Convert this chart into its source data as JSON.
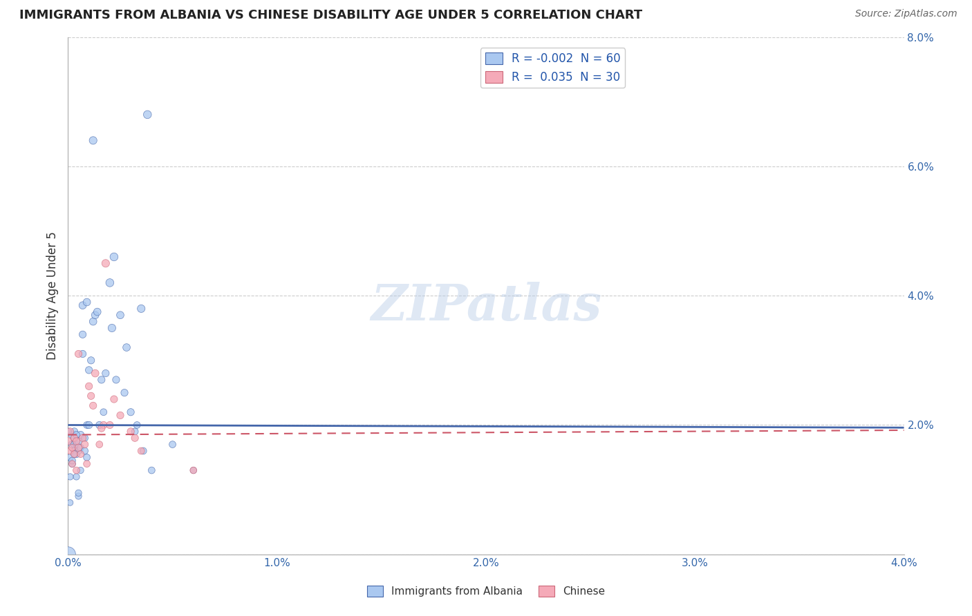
{
  "title": "IMMIGRANTS FROM ALBANIA VS CHINESE DISABILITY AGE UNDER 5 CORRELATION CHART",
  "source": "Source: ZipAtlas.com",
  "ylabel": "Disability Age Under 5",
  "xlim": [
    0.0,
    0.04
  ],
  "ylim": [
    0.0,
    0.08
  ],
  "xtick_labels": [
    "0.0%",
    "1.0%",
    "2.0%",
    "3.0%",
    "4.0%"
  ],
  "xtick_vals": [
    0.0,
    0.01,
    0.02,
    0.03,
    0.04
  ],
  "ytick_labels": [
    "",
    "2.0%",
    "4.0%",
    "6.0%",
    "8.0%"
  ],
  "ytick_vals": [
    0.0,
    0.02,
    0.04,
    0.06,
    0.08
  ],
  "legend1_label": "R = -0.002  N = 60",
  "legend2_label": "R =  0.035  N = 30",
  "series1_color": "#aac8f0",
  "series2_color": "#f5aab8",
  "trendline1_color": "#4466aa",
  "trendline2_color": "#cc5566",
  "watermark": "ZIPatlas",
  "bottom_legend_albania": "Immigrants from Albania",
  "bottom_legend_chinese": "Chinese",
  "albania_x": [
    0.0,
    0.0001,
    0.0001,
    0.0002,
    0.0002,
    0.0002,
    0.0003,
    0.0003,
    0.0003,
    0.0003,
    0.0004,
    0.0004,
    0.0004,
    0.0005,
    0.0005,
    0.0005,
    0.0006,
    0.0006,
    0.0006,
    0.0007,
    0.0007,
    0.0008,
    0.0008,
    0.0009,
    0.0009,
    0.001,
    0.001,
    0.0011,
    0.0012,
    0.0013,
    0.0014,
    0.0015,
    0.0016,
    0.0017,
    0.0018,
    0.002,
    0.0021,
    0.0022,
    0.0023,
    0.0025,
    0.0027,
    0.0028,
    0.003,
    0.0032,
    0.0033,
    0.0035,
    0.0036,
    0.0038,
    0.005,
    0.006,
    0.0,
    0.0001,
    0.0002,
    0.0003,
    0.0004,
    0.0005,
    0.0007,
    0.0009,
    0.0012,
    0.004
  ],
  "albania_y": [
    0.0,
    0.008,
    0.015,
    0.017,
    0.0185,
    0.014,
    0.016,
    0.018,
    0.019,
    0.017,
    0.0155,
    0.017,
    0.012,
    0.0175,
    0.016,
    0.009,
    0.0185,
    0.0165,
    0.013,
    0.034,
    0.031,
    0.018,
    0.016,
    0.02,
    0.015,
    0.0285,
    0.02,
    0.03,
    0.036,
    0.037,
    0.0375,
    0.02,
    0.027,
    0.022,
    0.028,
    0.042,
    0.035,
    0.046,
    0.027,
    0.037,
    0.025,
    0.032,
    0.022,
    0.019,
    0.02,
    0.038,
    0.016,
    0.068,
    0.017,
    0.013,
    0.019,
    0.012,
    0.0145,
    0.0155,
    0.0185,
    0.0095,
    0.0385,
    0.039,
    0.064,
    0.013
  ],
  "albania_sizes": [
    250,
    40,
    50,
    60,
    60,
    50,
    55,
    55,
    55,
    50,
    55,
    50,
    45,
    55,
    50,
    45,
    55,
    50,
    45,
    55,
    55,
    50,
    50,
    50,
    50,
    55,
    55,
    55,
    60,
    60,
    60,
    55,
    55,
    50,
    55,
    70,
    65,
    70,
    55,
    60,
    55,
    60,
    55,
    50,
    50,
    65,
    50,
    70,
    50,
    45,
    50,
    45,
    50,
    50,
    50,
    45,
    60,
    60,
    65,
    50
  ],
  "chinese_x": [
    0.0,
    0.0001,
    0.0001,
    0.0002,
    0.0002,
    0.0003,
    0.0003,
    0.0004,
    0.0004,
    0.0005,
    0.0005,
    0.0006,
    0.0007,
    0.0008,
    0.0009,
    0.001,
    0.0011,
    0.0012,
    0.0013,
    0.0015,
    0.0017,
    0.0018,
    0.002,
    0.0022,
    0.0025,
    0.003,
    0.0032,
    0.0035,
    0.006,
    0.0016
  ],
  "chinese_y": [
    0.0175,
    0.016,
    0.019,
    0.0165,
    0.014,
    0.018,
    0.0155,
    0.0175,
    0.013,
    0.0165,
    0.031,
    0.0155,
    0.018,
    0.017,
    0.014,
    0.026,
    0.0245,
    0.023,
    0.028,
    0.017,
    0.02,
    0.045,
    0.02,
    0.024,
    0.0215,
    0.019,
    0.018,
    0.016,
    0.013,
    0.0195
  ],
  "chinese_sizes": [
    55,
    50,
    55,
    50,
    50,
    55,
    50,
    55,
    50,
    55,
    55,
    50,
    55,
    55,
    50,
    55,
    55,
    55,
    60,
    50,
    55,
    65,
    55,
    55,
    55,
    55,
    55,
    50,
    50,
    55
  ],
  "trendline1_y_start": 0.02,
  "trendline1_y_end": 0.0196,
  "trendline2_y_start": 0.0185,
  "trendline2_y_end": 0.0192
}
